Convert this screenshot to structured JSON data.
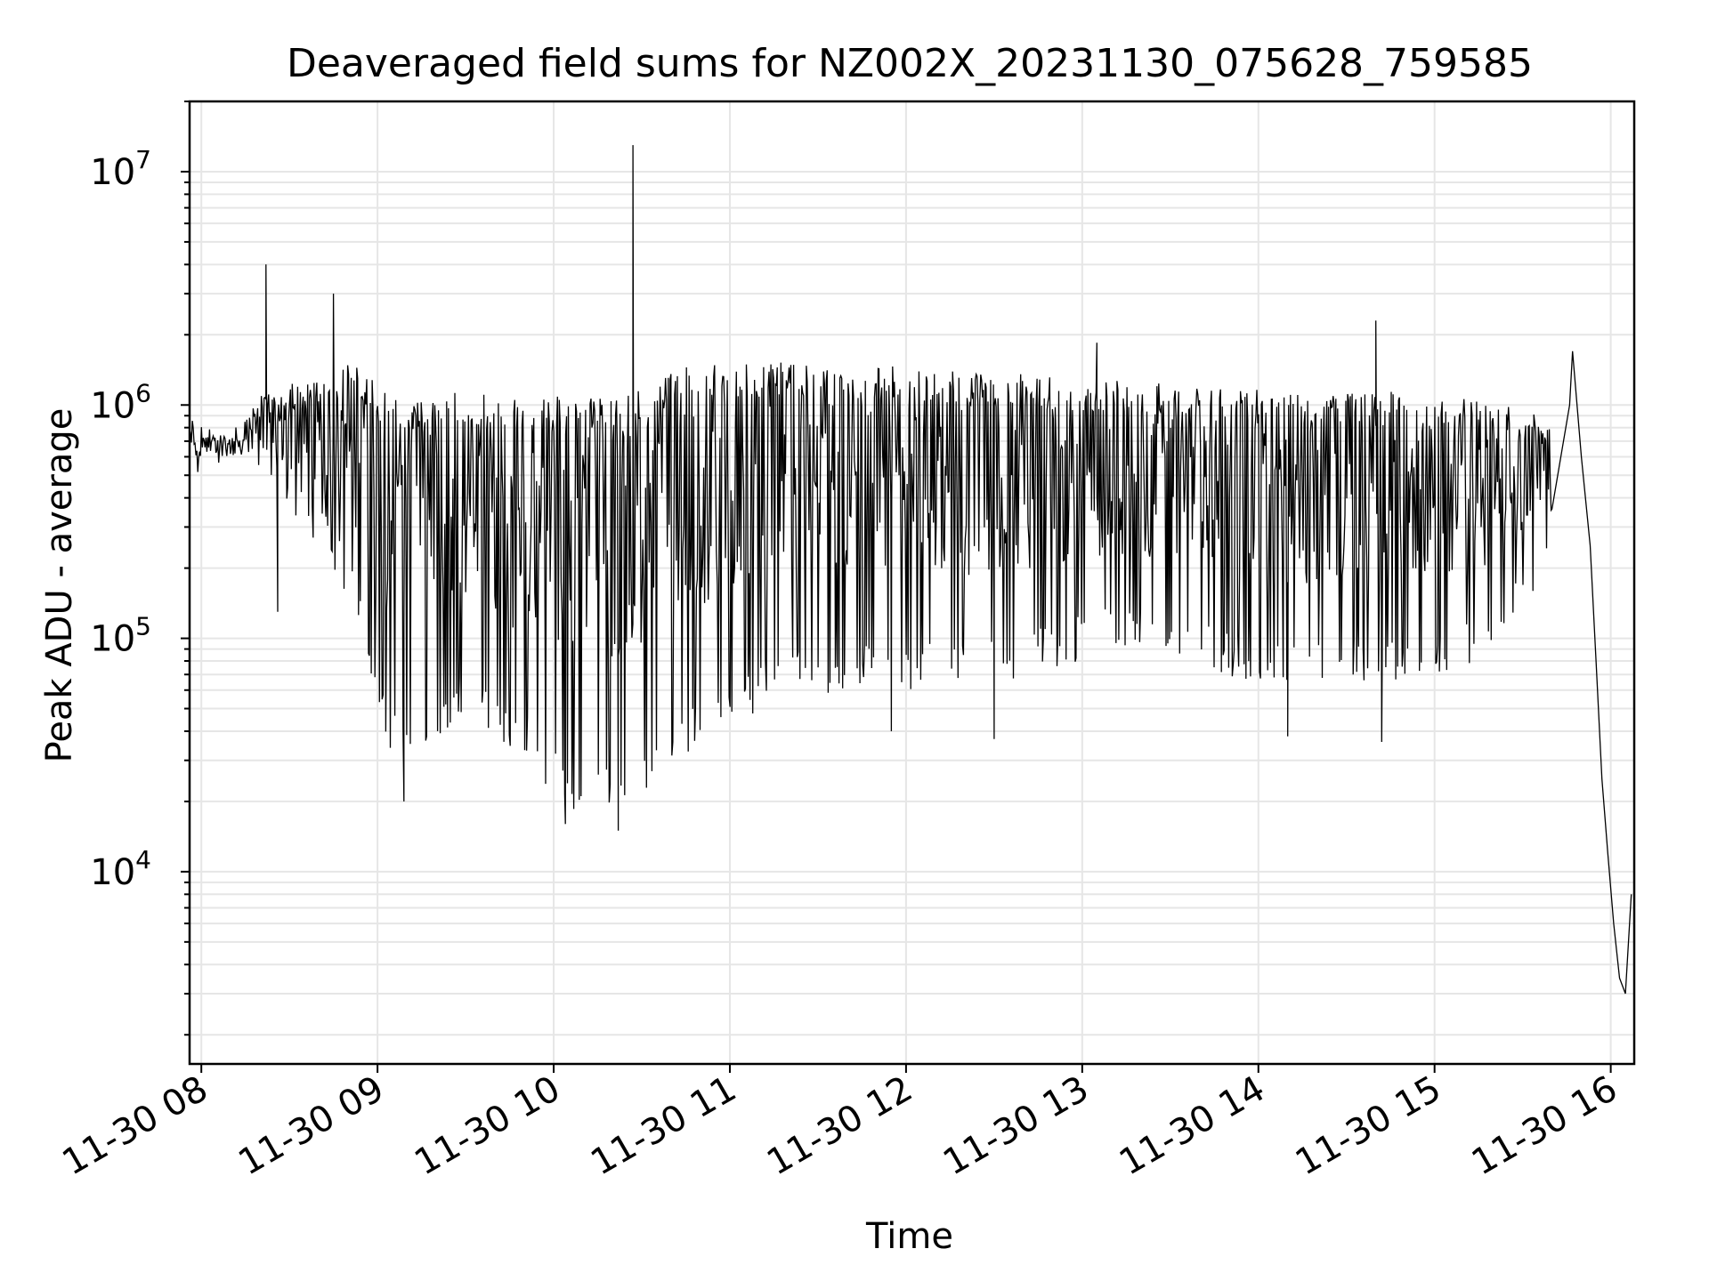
{
  "chart_data": {
    "type": "line",
    "title": "Deaveraged field sums for NZ002X_20231130_075628_759585",
    "xlabel": "Time",
    "ylabel": "Peak ADU - average",
    "yscale": "log",
    "ylim": [
      1500,
      20000000
    ],
    "xlim": [
      "2023-11-30 07:56",
      "2023-11-30 16:08"
    ],
    "grid": "both-major-and-minor",
    "line_color": "#000000",
    "grid_color": "#e6e6e6",
    "x_ticks": [
      {
        "value": "2023-11-30 08:00",
        "label": "11-30 08"
      },
      {
        "value": "2023-11-30 09:00",
        "label": "11-30 09"
      },
      {
        "value": "2023-11-30 10:00",
        "label": "11-30 10"
      },
      {
        "value": "2023-11-30 11:00",
        "label": "11-30 11"
      },
      {
        "value": "2023-11-30 12:00",
        "label": "11-30 12"
      },
      {
        "value": "2023-11-30 13:00",
        "label": "11-30 13"
      },
      {
        "value": "2023-11-30 14:00",
        "label": "11-30 14"
      },
      {
        "value": "2023-11-30 15:00",
        "label": "11-30 15"
      },
      {
        "value": "2023-11-30 16:00",
        "label": "11-30 16"
      }
    ],
    "y_ticks": [
      {
        "value": 10000,
        "base": "10",
        "exp": "4"
      },
      {
        "value": 100000,
        "base": "10",
        "exp": "5"
      },
      {
        "value": 1000000,
        "base": "10",
        "exp": "6"
      },
      {
        "value": 10000000,
        "base": "10",
        "exp": "7"
      }
    ],
    "envelope": [
      {
        "x": "2023-11-30 07:56",
        "high": 900000,
        "low": 480000
      },
      {
        "x": "2023-11-30 08:10",
        "high": 750000,
        "low": 520000
      },
      {
        "x": "2023-11-30 08:20",
        "high": 1100000,
        "low": 500000
      },
      {
        "x": "2023-11-30 08:35",
        "high": 1300000,
        "low": 300000
      },
      {
        "x": "2023-11-30 08:50",
        "high": 1550000,
        "low": 150000
      },
      {
        "x": "2023-11-30 09:05",
        "high": 1100000,
        "low": 30000
      },
      {
        "x": "2023-11-30 09:30",
        "high": 1150000,
        "low": 45000
      },
      {
        "x": "2023-11-30 09:50",
        "high": 1050000,
        "low": 30000
      },
      {
        "x": "2023-11-30 10:05",
        "high": 1100000,
        "low": 18000
      },
      {
        "x": "2023-11-30 10:25",
        "high": 1150000,
        "low": 19000
      },
      {
        "x": "2023-11-30 10:45",
        "high": 1450000,
        "low": 30000
      },
      {
        "x": "2023-11-30 11:15",
        "high": 1550000,
        "low": 55000
      },
      {
        "x": "2023-11-30 11:45",
        "high": 1500000,
        "low": 60000
      },
      {
        "x": "2023-11-30 12:15",
        "high": 1400000,
        "low": 60000
      },
      {
        "x": "2023-11-30 12:45",
        "high": 1350000,
        "low": 70000
      },
      {
        "x": "2023-11-30 13:15",
        "high": 1300000,
        "low": 90000
      },
      {
        "x": "2023-11-30 13:45",
        "high": 1200000,
        "low": 70000
      },
      {
        "x": "2023-11-30 14:15",
        "high": 1150000,
        "low": 60000
      },
      {
        "x": "2023-11-30 14:45",
        "high": 1200000,
        "low": 65000
      },
      {
        "x": "2023-11-30 15:15",
        "high": 1050000,
        "low": 75000
      },
      {
        "x": "2023-11-30 15:40",
        "high": 900000,
        "low": 200000
      }
    ],
    "tail": [
      {
        "x": "2023-11-30 15:46",
        "y": 1000000
      },
      {
        "x": "2023-11-30 15:50",
        "y": 600000
      },
      {
        "x": "2023-11-30 15:53",
        "y": 250000
      },
      {
        "x": "2023-11-30 15:55",
        "y": 80000
      },
      {
        "x": "2023-11-30 15:57",
        "y": 25000
      },
      {
        "x": "2023-11-30 15:59",
        "y": 12000
      },
      {
        "x": "2023-11-30 16:01",
        "y": 6000
      },
      {
        "x": "2023-11-30 16:03",
        "y": 3500
      },
      {
        "x": "2023-11-30 16:05",
        "y": 3000
      },
      {
        "x": "2023-11-30 16:07",
        "y": 8000
      }
    ],
    "spikes": [
      {
        "x": "2023-11-30 08:22",
        "y": 4000000
      },
      {
        "x": "2023-11-30 08:45",
        "y": 3000000
      },
      {
        "x": "2023-11-30 10:27",
        "y": 13000000
      },
      {
        "x": "2023-11-30 14:40",
        "y": 2300000
      },
      {
        "x": "2023-11-30 13:05",
        "y": 1850000
      },
      {
        "x": "2023-11-30 15:47",
        "y": 1700000
      }
    ],
    "dips": [
      {
        "x": "2023-11-30 08:26",
        "y": 130000
      },
      {
        "x": "2023-11-30 09:09",
        "y": 20000
      },
      {
        "x": "2023-11-30 10:04",
        "y": 16000
      },
      {
        "x": "2023-11-30 10:22",
        "y": 15000
      },
      {
        "x": "2023-11-30 11:55",
        "y": 40000
      },
      {
        "x": "2023-11-30 12:30",
        "y": 37000
      },
      {
        "x": "2023-11-30 14:10",
        "y": 38000
      },
      {
        "x": "2023-11-30 14:42",
        "y": 36000
      }
    ]
  }
}
